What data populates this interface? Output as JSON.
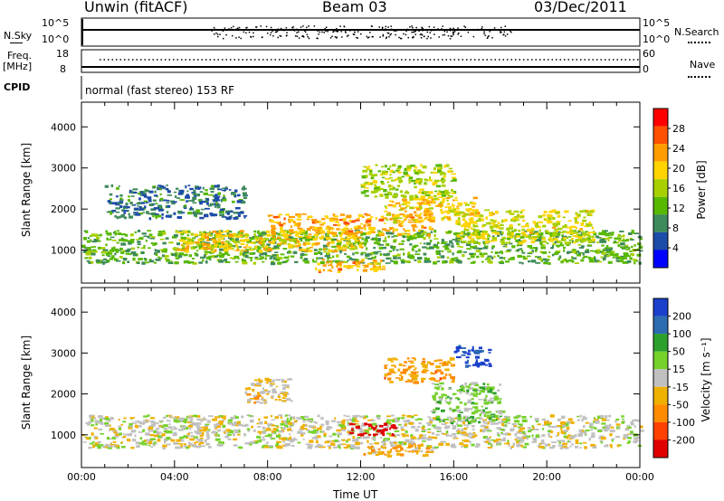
{
  "header": {
    "station": "Unwin (fitACF)",
    "beam": "Beam 03",
    "date": "03/Dec/2011"
  },
  "panels": {
    "nsky_label": "N.Sky",
    "nsky_ticks": [
      "10^5",
      "10^0"
    ],
    "nsearch_label": "N.Search",
    "freq_label": "Freq.",
    "freq_unit": "[MHz]",
    "freq_ticks": [
      "18",
      "8"
    ],
    "nave_ticks": [
      "60",
      "0"
    ],
    "nave_label": "Nave",
    "cpid_label": "CPID",
    "cpid_text": "normal (fast stereo) 153 RF"
  },
  "axes": {
    "ylabel": "Slant Range [km]",
    "yticks": [
      "4000",
      "3000",
      "2000",
      "1000"
    ],
    "xlabel": "Time UT",
    "xticks": [
      "00:00",
      "04:00",
      "08:00",
      "12:00",
      "16:00",
      "20:00",
      "00:00"
    ]
  },
  "colorbars": {
    "power": {
      "label": "Power [dB]",
      "ticks": [
        "28",
        "24",
        "20",
        "16",
        "12",
        "8",
        "4"
      ],
      "colors": [
        "#ff0000",
        "#ff4f00",
        "#ff9d00",
        "#ffd400",
        "#a8d000",
        "#58b800",
        "#3d8a5a",
        "#1c4ba8",
        "#0000ff"
      ]
    },
    "velocity": {
      "label": "Velocity [m s⁻¹]",
      "ticks": [
        "200",
        "100",
        "50",
        "15",
        "-15",
        "-50",
        "-100",
        "-200"
      ],
      "colors": [
        "#1a40cc",
        "#2c6cb0",
        "#2ca02c",
        "#76d12a",
        "#c0c0c0",
        "#f0b000",
        "#ff8c00",
        "#ff4000",
        "#e00000"
      ]
    }
  },
  "chart_data": [
    {
      "type": "heatmap",
      "title": "",
      "xlabel": "",
      "ylabel": "Slant Range [km]",
      "xlim": [
        0,
        24
      ],
      "ylim": [
        200,
        4600
      ],
      "colorbar": "Power [dB]",
      "colorbar_range": [
        0,
        32
      ],
      "regions": [
        {
          "x": [
            0,
            24
          ],
          "y": [
            700,
            1500
          ],
          "value": 12
        },
        {
          "x": [
            4,
            12
          ],
          "y": [
            1000,
            1500
          ],
          "value": 20
        },
        {
          "x": [
            8,
            15
          ],
          "y": [
            1400,
            1900
          ],
          "value": 22
        },
        {
          "x": [
            13,
            17
          ],
          "y": [
            1700,
            2300
          ],
          "value": 20
        },
        {
          "x": [
            12,
            16
          ],
          "y": [
            2300,
            3100
          ],
          "value": 16
        },
        {
          "x": [
            10,
            13
          ],
          "y": [
            500,
            800
          ],
          "value": 22
        },
        {
          "x": [
            16,
            22
          ],
          "y": [
            1200,
            2000
          ],
          "value": 18
        },
        {
          "x": [
            1,
            7
          ],
          "y": [
            1800,
            2600
          ],
          "value": 8
        }
      ]
    },
    {
      "type": "heatmap",
      "title": "",
      "xlabel": "Time UT",
      "ylabel": "Slant Range [km]",
      "xlim": [
        0,
        24
      ],
      "ylim": [
        200,
        4600
      ],
      "colorbar": "Velocity [m s⁻¹]",
      "colorbar_range": [
        -200,
        200
      ],
      "regions": [
        {
          "x": [
            0,
            24
          ],
          "y": [
            700,
            1500
          ],
          "value": 0
        },
        {
          "x": [
            11.5,
            13.5
          ],
          "y": [
            1000,
            1300
          ],
          "value": -200
        },
        {
          "x": [
            12,
            15
          ],
          "y": [
            500,
            800
          ],
          "value": -60
        },
        {
          "x": [
            13,
            16
          ],
          "y": [
            2300,
            2900
          ],
          "value": -70
        },
        {
          "x": [
            15,
            18
          ],
          "y": [
            1300,
            2300
          ],
          "value": 40
        },
        {
          "x": [
            16,
            17.5
          ],
          "y": [
            2700,
            3200
          ],
          "value": 180
        },
        {
          "x": [
            7,
            9
          ],
          "y": [
            1800,
            2400
          ],
          "value": -30
        }
      ]
    }
  ]
}
